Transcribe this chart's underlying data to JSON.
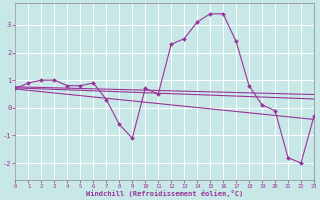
{
  "background_color": "#c8e8e8",
  "grid_color": "#b0d8d8",
  "line_color": "#993399",
  "xlabel": "Windchill (Refroidissement éolien,°C)",
  "xlim": [
    0,
    23
  ],
  "ylim": [
    -2.6,
    3.8
  ],
  "yticks": [
    -2,
    -1,
    0,
    1,
    2,
    3
  ],
  "xticks": [
    0,
    1,
    2,
    3,
    4,
    5,
    6,
    7,
    8,
    9,
    10,
    11,
    12,
    13,
    14,
    15,
    16,
    17,
    18,
    19,
    20,
    21,
    22,
    23
  ],
  "hours": [
    0,
    1,
    2,
    3,
    4,
    5,
    6,
    7,
    8,
    9,
    10,
    11,
    12,
    13,
    14,
    15,
    16,
    17,
    18,
    19,
    20,
    21,
    22,
    23
  ],
  "windchill": [
    0.7,
    0.9,
    1.0,
    1.0,
    0.8,
    0.8,
    0.9,
    0.3,
    -0.6,
    -1.1,
    0.7,
    0.5,
    2.3,
    2.5,
    3.1,
    3.4,
    3.4,
    2.4,
    0.8,
    0.1,
    -0.1,
    -1.8,
    -2.0,
    -0.3
  ],
  "reg_lines": [
    {
      "x": [
        0,
        23
      ],
      "y": [
        0.75,
        0.45
      ]
    },
    {
      "x": [
        0,
        23
      ],
      "y": [
        0.72,
        0.3
      ]
    },
    {
      "x": [
        0,
        23
      ],
      "y": [
        0.68,
        -0.45
      ]
    }
  ]
}
